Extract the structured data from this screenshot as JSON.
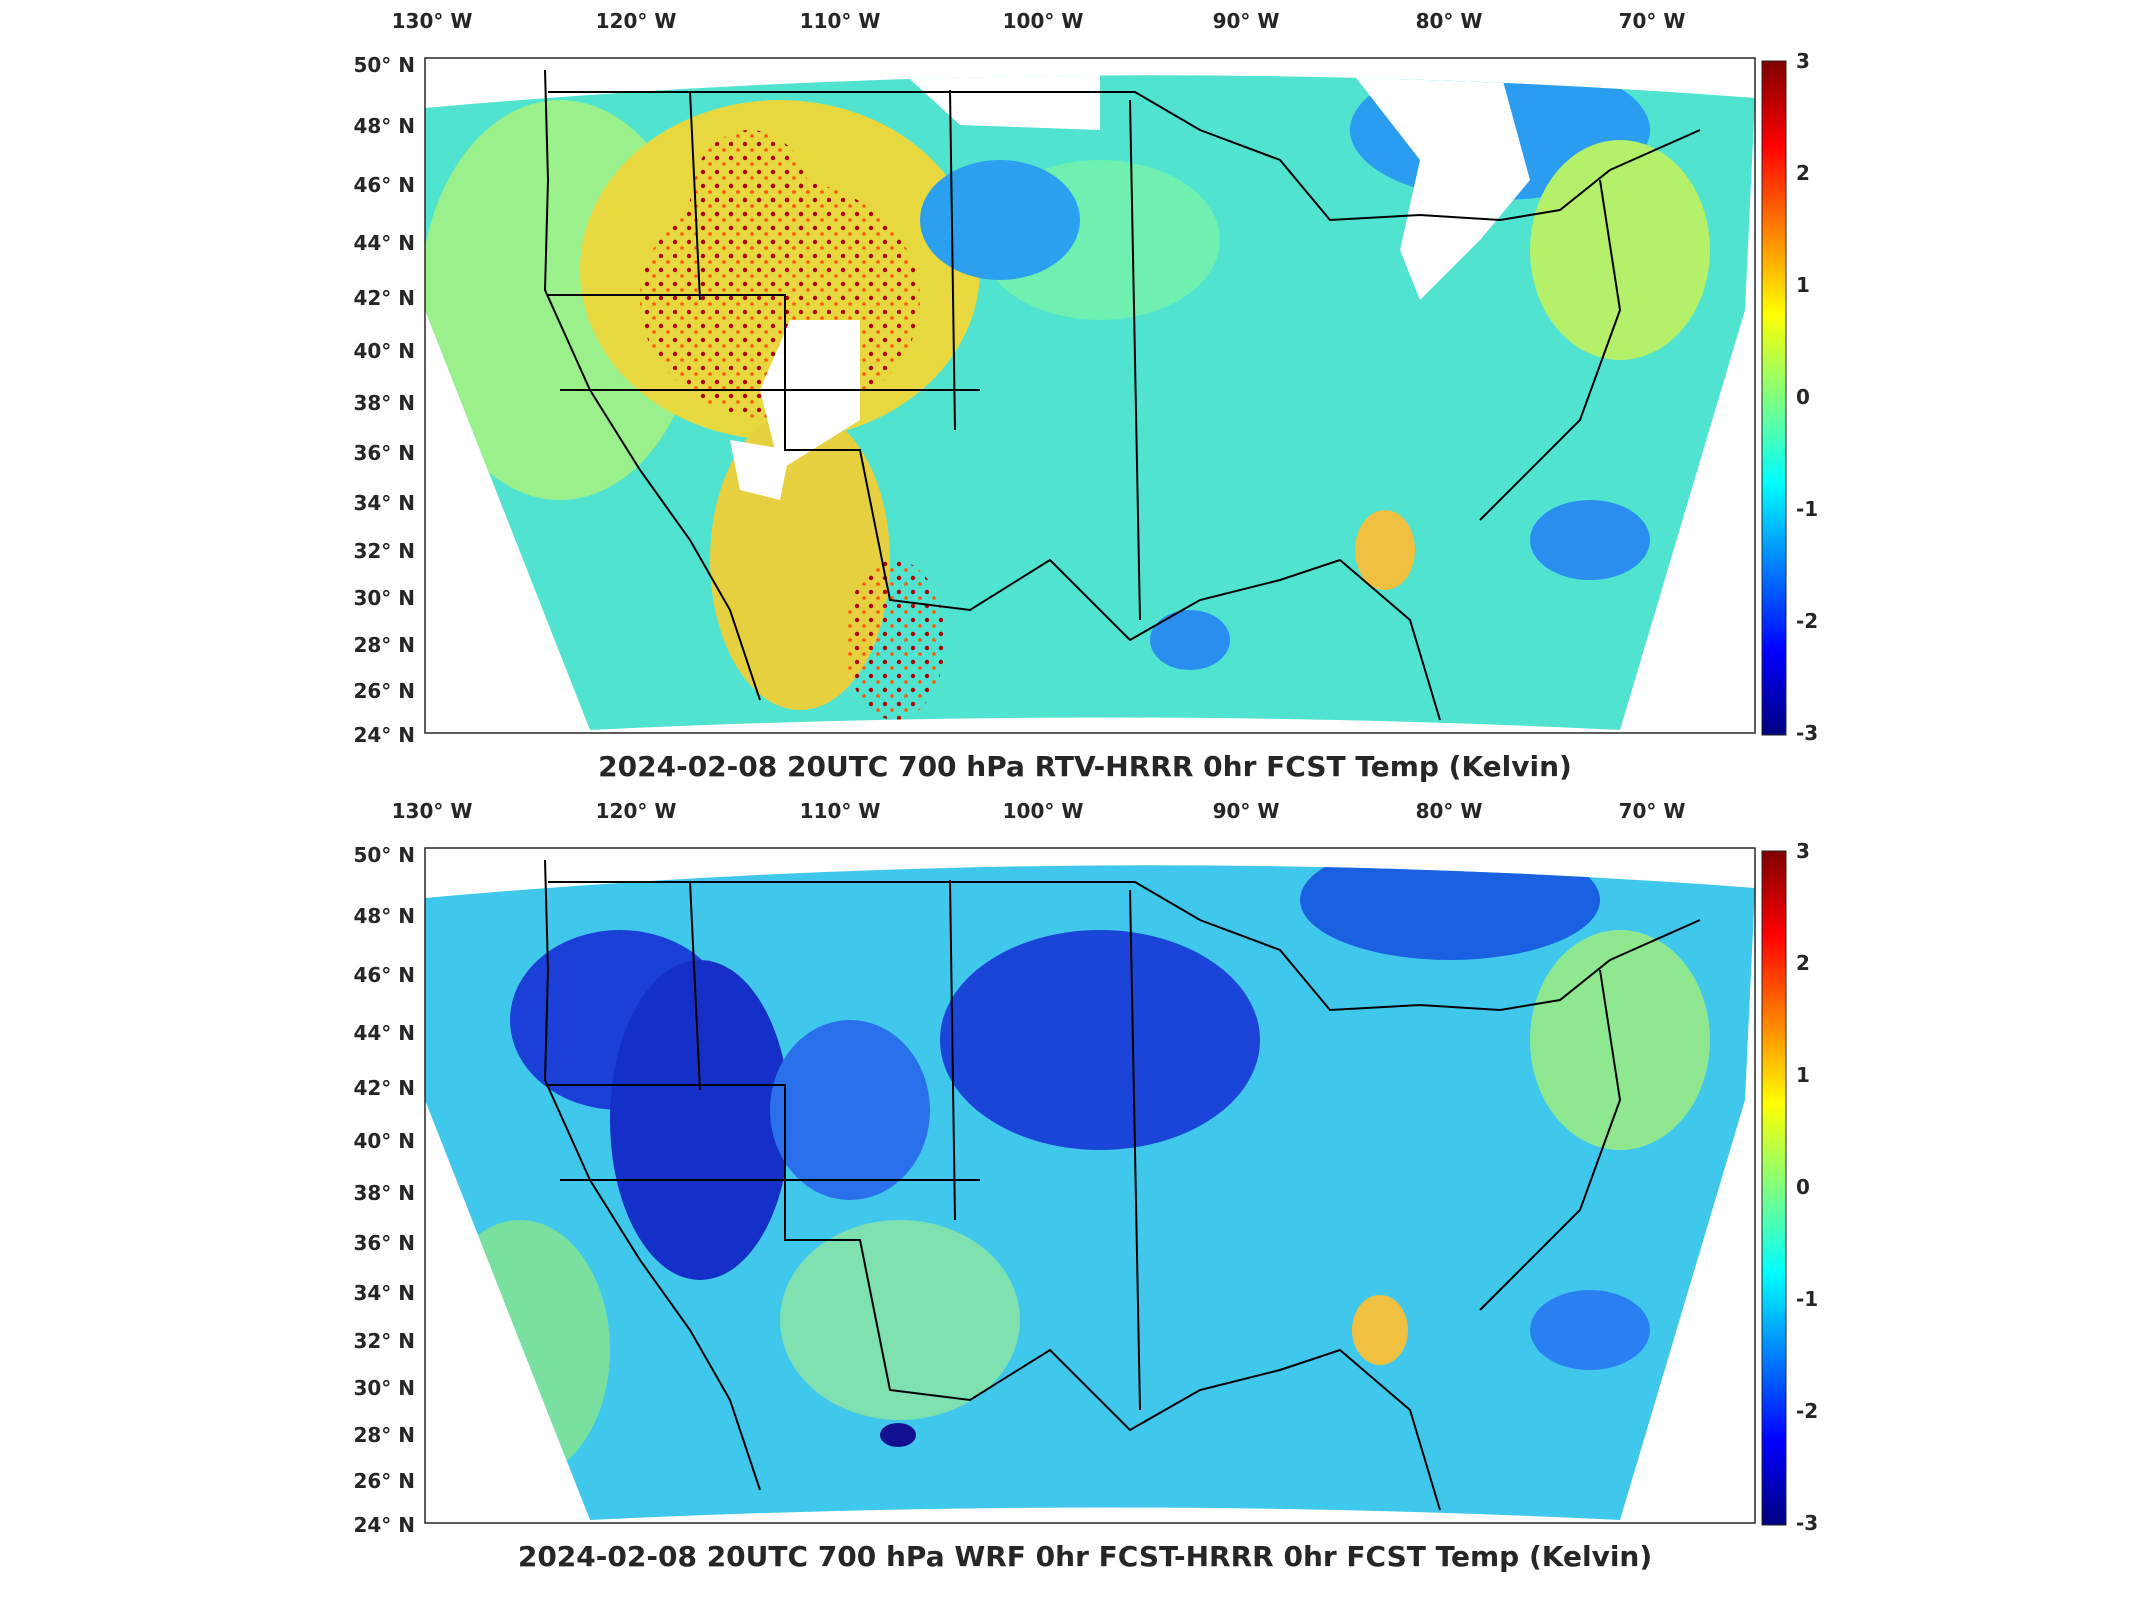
{
  "colors": {
    "axes_edge": "#262626",
    "colormap": [
      "#00007f",
      "#0000ff",
      "#007fff",
      "#00ffff",
      "#7fff7f",
      "#ffff00",
      "#ff7f00",
      "#ff0000",
      "#7f0000"
    ],
    "land_boundary": "#000000",
    "missing": "#ffffff"
  },
  "map": {
    "lon_ticks": [
      "130° W",
      "120° W",
      "110° W",
      "100° W",
      "90° W",
      "80° W",
      "70° W"
    ],
    "lat_ticks": [
      "50° N",
      "48° N",
      "46° N",
      "44° N",
      "42° N",
      "40° N",
      "38° N",
      "36° N",
      "34° N",
      "32° N",
      "30° N",
      "28° N",
      "26° N",
      "24° N"
    ],
    "colorbar_ticks": [
      "3",
      "2",
      "1",
      "0",
      "-1",
      "-2",
      "-3"
    ],
    "colorbar_range": [
      -3,
      3
    ]
  },
  "panels": [
    {
      "id": "rtv",
      "title": "2024-02-08 20UTC 700 hPa RTV-HRRR 0hr FCST Temp (Kelvin)"
    },
    {
      "id": "wrf",
      "title": "2024-02-08 20UTC 700 hPa WRF 0hr FCST-HRRR 0hr FCST Temp (Kelvin)"
    }
  ]
}
